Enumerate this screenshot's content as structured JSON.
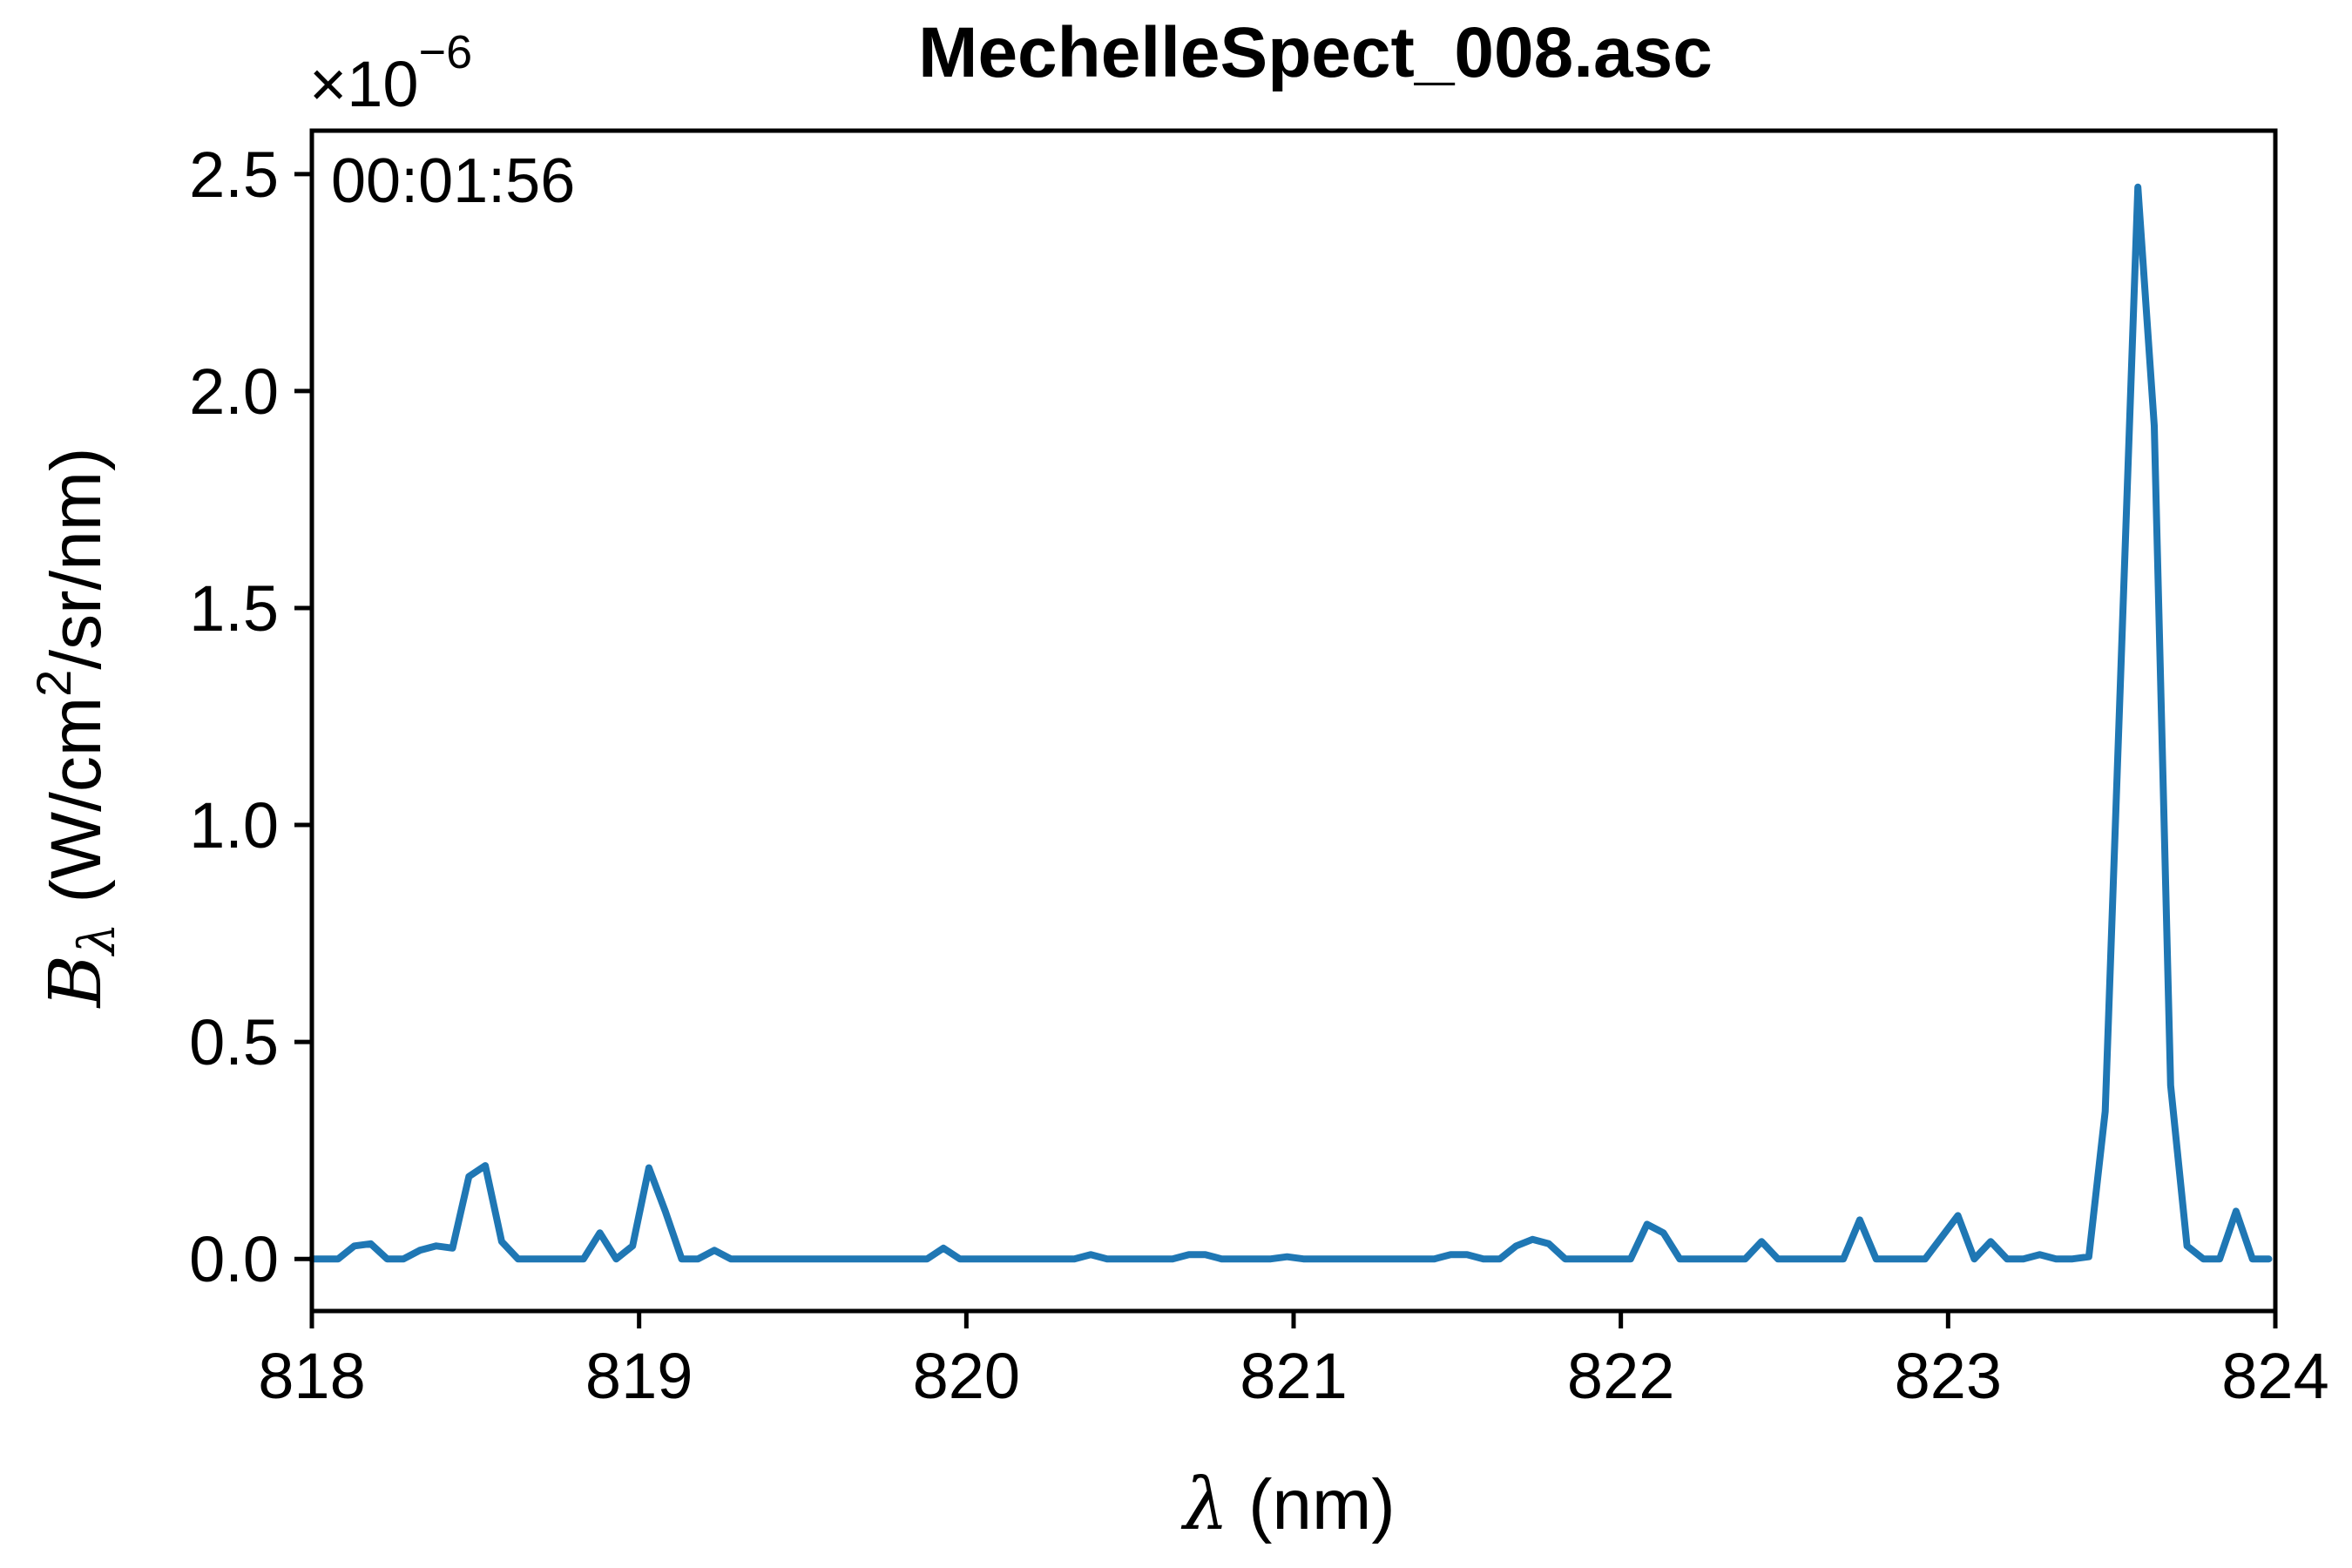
{
  "chart_data": {
    "type": "line",
    "title": "MechelleSpect_008.asc",
    "xlabel_symbol": "λ",
    "xlabel_unit": " (nm)",
    "ylabel_symbol": "B",
    "ylabel_subscript": "λ",
    "ylabel_unit_prefix": " (W/cm",
    "ylabel_unit_sup": "2",
    "ylabel_unit_suffix": "/sr/nm)",
    "offset_text_base": "×10",
    "offset_text_exp": "−6",
    "annotation": "00:01:56",
    "xlim": [
      818,
      824
    ],
    "ylim": [
      -0.12,
      2.6
    ],
    "x_scale_factor": 1e-06,
    "xticks": [
      818,
      819,
      820,
      821,
      822,
      823,
      824
    ],
    "xtick_labels": [
      "818",
      "819",
      "820",
      "821",
      "822",
      "823",
      "824"
    ],
    "yticks": [
      0.0,
      0.5,
      1.0,
      1.5,
      2.0,
      2.5
    ],
    "ytick_labels": [
      "0.0",
      "0.5",
      "1.0",
      "1.5",
      "2.0",
      "2.5"
    ],
    "grid": false,
    "line_color": "#1f77b4",
    "series": [
      {
        "x": [
          818.0,
          818.08,
          818.13,
          818.18,
          818.23,
          818.28,
          818.33,
          818.38,
          818.43,
          818.48,
          818.53,
          818.58,
          818.63,
          818.68,
          818.73,
          818.78,
          818.83,
          818.88,
          818.93,
          818.98,
          819.03,
          819.08,
          819.13,
          819.18,
          819.23,
          819.28,
          819.33,
          819.38,
          819.43,
          819.48,
          819.53,
          819.58,
          819.63,
          819.68,
          819.73,
          819.78,
          819.83,
          819.88,
          819.93,
          819.98,
          820.03,
          820.08,
          820.13,
          820.18,
          820.23,
          820.28,
          820.33,
          820.38,
          820.43,
          820.48,
          820.53,
          820.58,
          820.63,
          820.68,
          820.73,
          820.78,
          820.83,
          820.88,
          820.93,
          820.98,
          821.03,
          821.08,
          821.13,
          821.18,
          821.23,
          821.28,
          821.33,
          821.38,
          821.43,
          821.48,
          821.53,
          821.58,
          821.63,
          821.68,
          821.73,
          821.78,
          821.83,
          821.88,
          821.93,
          821.98,
          822.03,
          822.08,
          822.13,
          822.18,
          822.23,
          822.28,
          822.33,
          822.38,
          822.43,
          822.48,
          822.53,
          822.58,
          822.63,
          822.68,
          822.73,
          822.78,
          822.83,
          822.88,
          822.93,
          822.98,
          823.03,
          823.08,
          823.13,
          823.18,
          823.23,
          823.28,
          823.33,
          823.38,
          823.43,
          823.48,
          823.53,
          823.58,
          823.63,
          823.68,
          823.73,
          823.78,
          823.83,
          823.88,
          823.93,
          823.98
        ],
        "y": [
          0.0,
          0.0,
          0.03,
          0.035,
          0.0,
          0.0,
          0.02,
          0.03,
          0.025,
          0.19,
          0.215,
          0.04,
          0.0,
          0.0,
          0.0,
          0.0,
          0.0,
          0.06,
          0.0,
          0.03,
          0.21,
          0.11,
          0.0,
          0.0,
          0.02,
          0.0,
          0.0,
          0.0,
          0.0,
          0.0,
          0.0,
          0.0,
          0.0,
          0.0,
          0.0,
          0.0,
          0.0,
          0.0,
          0.025,
          0.0,
          0.0,
          0.0,
          0.0,
          0.0,
          0.0,
          0.0,
          0.0,
          0.01,
          0.0,
          0.0,
          0.0,
          0.0,
          0.0,
          0.01,
          0.01,
          0.0,
          0.0,
          0.0,
          0.0,
          0.005,
          0.0,
          0.0,
          0.0,
          0.0,
          0.0,
          0.0,
          0.0,
          0.0,
          0.0,
          0.01,
          0.01,
          0.0,
          0.0,
          0.03,
          0.045,
          0.035,
          0.0,
          0.0,
          0.0,
          0.0,
          0.0,
          0.08,
          0.06,
          0.0,
          0.0,
          0.0,
          0.0,
          0.0,
          0.04,
          0.0,
          0.0,
          0.0,
          0.0,
          0.0,
          0.09,
          0.0,
          0.0,
          0.0,
          0.0,
          0.05,
          0.1,
          0.0,
          0.04,
          0.0,
          0.0,
          0.01,
          0.0,
          0.0,
          0.005,
          0.34,
          1.4,
          2.47,
          1.92,
          0.4,
          0.03,
          0.0,
          0.0,
          0.11,
          0.0,
          0.0
        ]
      }
    ]
  }
}
